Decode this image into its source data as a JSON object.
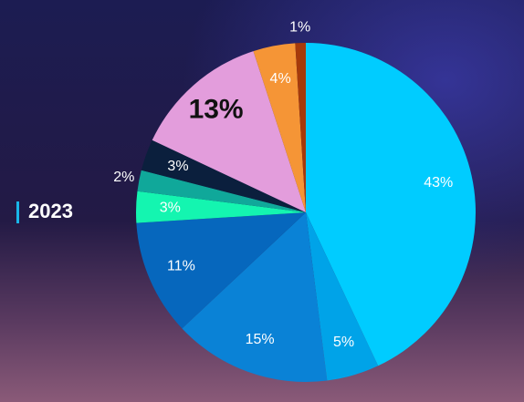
{
  "chart_data": {
    "type": "pie",
    "title": "2023",
    "values": [
      43,
      5,
      15,
      11,
      3,
      2,
      3,
      13,
      4,
      1
    ],
    "value_labels": [
      "43%",
      "5%",
      "15%",
      "11%",
      "3%",
      "2%",
      "3%",
      "13%",
      "4%",
      "1%"
    ],
    "colors": [
      "#00ccff",
      "#00a3e8",
      "#0a82d6",
      "#0667bd",
      "#14f5b0",
      "#10a89a",
      "#0b1f3d",
      "#e39ddc",
      "#f59536",
      "#a63a0a"
    ]
  }
}
